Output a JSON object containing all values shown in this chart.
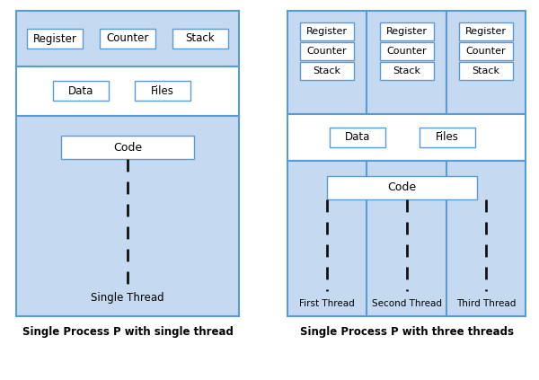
{
  "bg_color": "#ffffff",
  "light_blue": "#c5d9f1",
  "white": "#ffffff",
  "edge_color": "#5b9bd5",
  "text_color": "#000000",
  "caption_left": "Single Process P with single thread",
  "caption_right": "Single Process P with three threads",
  "single_thread_label": "Single Thread",
  "thread_labels": [
    "First Thread",
    "Second Thread",
    "Third Thread"
  ]
}
